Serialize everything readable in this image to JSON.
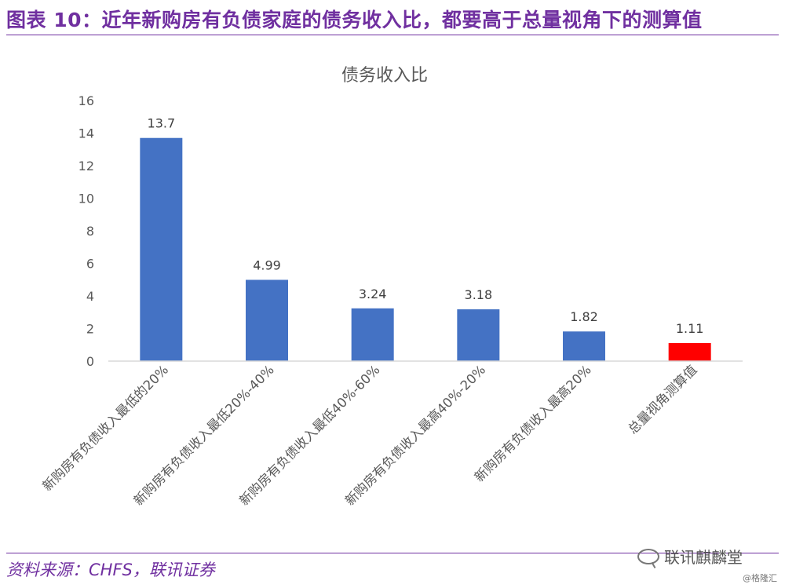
{
  "header": {
    "title": "图表 10：近年新购房有负债家庭的债务收入比，都要高于总量视角下的测算值"
  },
  "footer": {
    "source": "资料来源：CHFS，联讯证券"
  },
  "watermark": {
    "main": "联讯麒麟堂",
    "sub": "@格隆汇",
    "icon": "wechat-icon"
  },
  "colors": {
    "accent": "#7030a0",
    "bar": "#4472c4",
    "highlight_bar": "#ff0000"
  },
  "chart_data": {
    "type": "bar",
    "title": "债务收入比",
    "xlabel": "",
    "ylabel": "",
    "categories": [
      "新购房有负债收入最低的20%",
      "新购房有负债收入最低20%-40%",
      "新购房有负债收入最低40%-60%",
      "新购房有负债收入最高40%-20%",
      "新购房有负债收入最高20%",
      "总量视角测算值"
    ],
    "values": [
      13.7,
      4.99,
      3.24,
      3.18,
      1.82,
      1.11
    ],
    "data_labels": [
      "13.7",
      "4.99",
      "3.24",
      "3.18",
      "1.82",
      "1.11"
    ],
    "bar_colors": [
      "#4472c4",
      "#4472c4",
      "#4472c4",
      "#4472c4",
      "#4472c4",
      "#ff0000"
    ],
    "ylim": [
      0,
      16
    ],
    "yticks": [
      0,
      2,
      4,
      6,
      8,
      10,
      12,
      14,
      16
    ],
    "grid": false,
    "legend": "none"
  }
}
